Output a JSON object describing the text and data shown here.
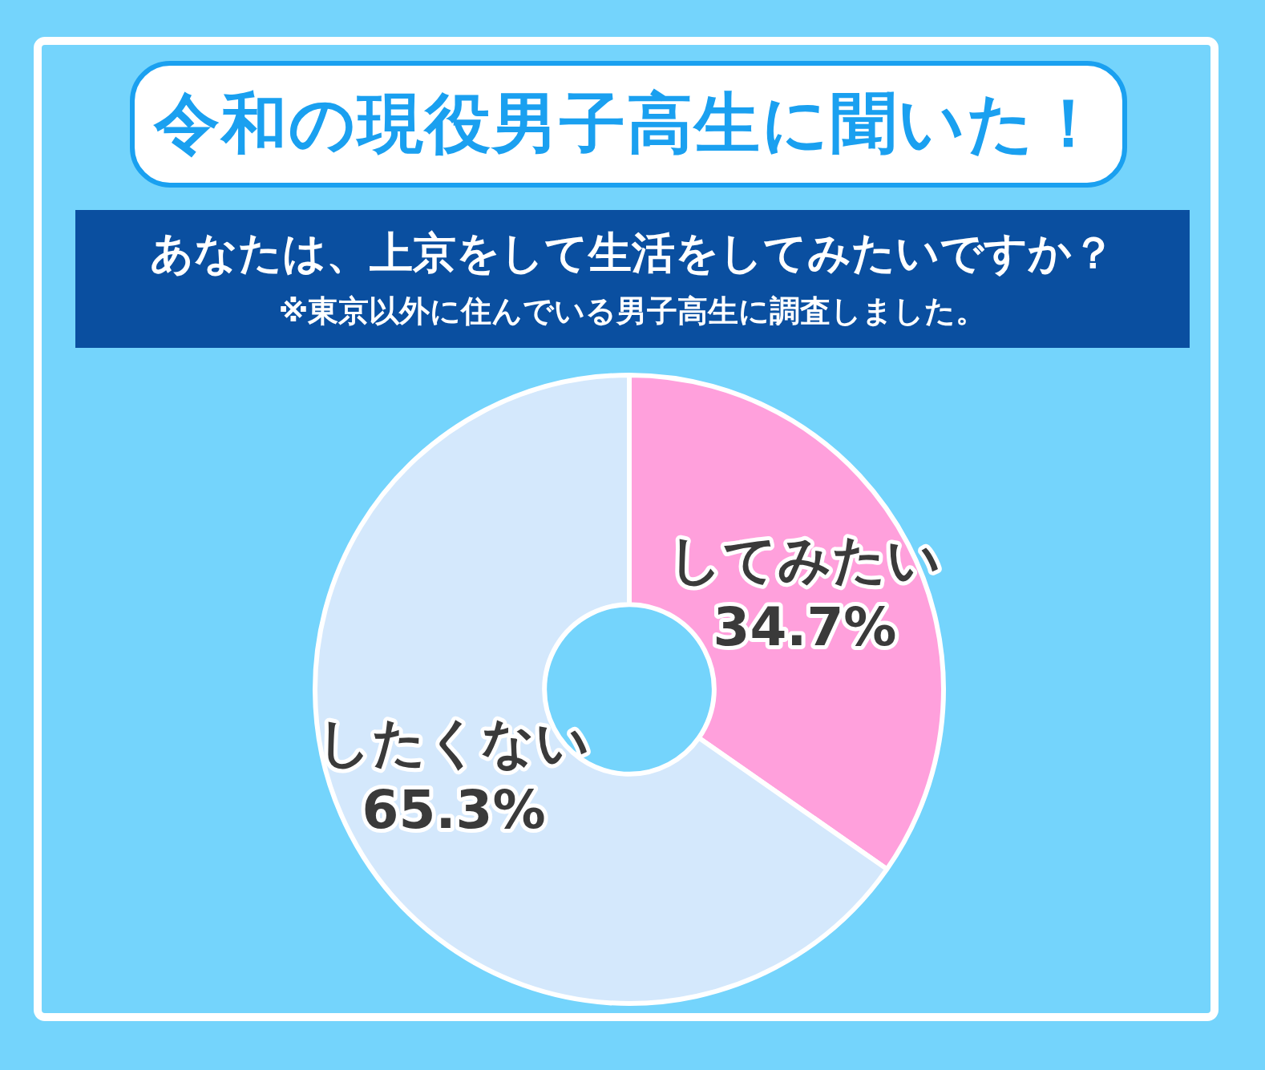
{
  "chart_data": {
    "type": "donut",
    "title": "令和の現役男子高生に聞いた！",
    "subtitle": "あなたは、上京をして生活をしてみたいですか？",
    "annotations": [
      "※東京以外に住んでいる男子高生に調査しました。"
    ],
    "categories": [
      "してみたい",
      "したくない"
    ],
    "values": [
      34.7,
      65.3
    ],
    "colors": [
      "#ffa0dc",
      "#d4e8fc"
    ],
    "value_labels": [
      "34.7%",
      "65.3%"
    ],
    "legend": false
  }
}
